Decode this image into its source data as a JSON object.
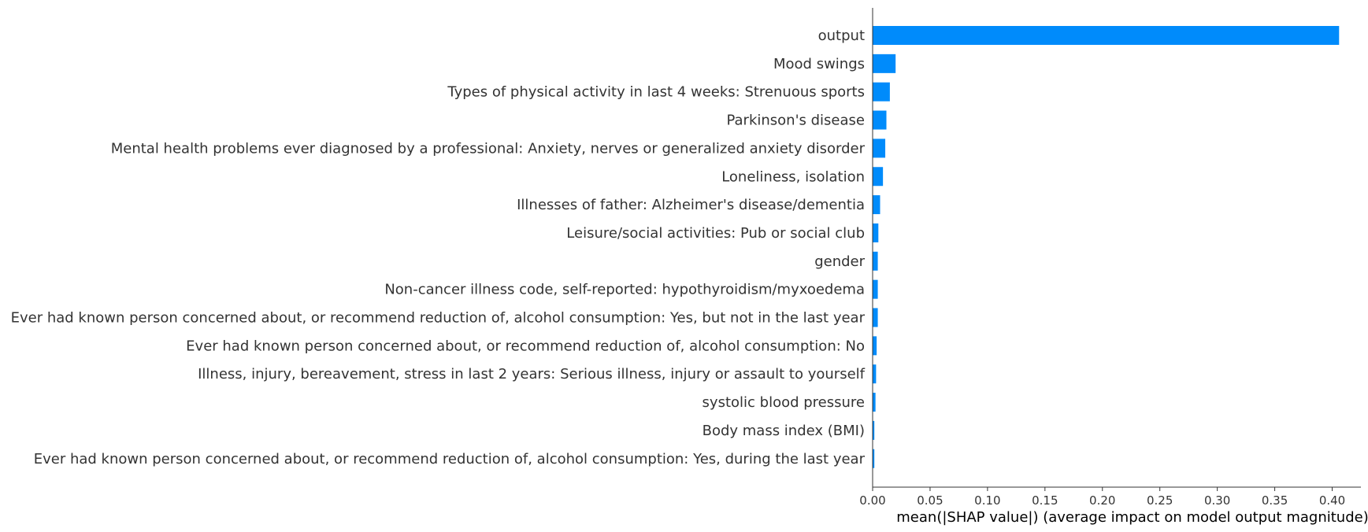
{
  "chart_data": {
    "type": "bar",
    "orientation": "horizontal",
    "categories": [
      "output",
      "Mood swings",
      "Types of physical activity in last 4 weeks: Strenuous sports",
      "Parkinson's disease",
      "Mental health problems ever diagnosed by a professional: Anxiety, nerves or generalized anxiety disorder",
      "Loneliness, isolation",
      "Illnesses of father: Alzheimer's disease/dementia",
      "Leisure/social activities: Pub or social club",
      "gender",
      "Non-cancer illness code, self-reported: hypothyroidism/myxoedema",
      "Ever had known person concerned about, or recommend reduction of, alcohol consumption: Yes, but not in the last year",
      "Ever had known person concerned about, or recommend reduction of, alcohol consumption: No",
      "Illness, injury, bereavement, stress in last 2 years: Serious illness, injury or assault to yourself",
      "systolic blood pressure",
      "Body mass index (BMI)",
      "Ever had known person concerned about, or recommend reduction of, alcohol consumption: Yes, during the last year"
    ],
    "values": [
      0.406,
      0.02,
      0.015,
      0.012,
      0.011,
      0.009,
      0.0065,
      0.005,
      0.0045,
      0.0045,
      0.0045,
      0.0035,
      0.003,
      0.0025,
      0.0015,
      0.0015
    ],
    "xlabel": "mean(|SHAP value|) (average impact on model output magnitude)",
    "ylabel": "",
    "xlim": [
      0,
      0.425
    ],
    "xticks": [
      0.0,
      0.05,
      0.1,
      0.15,
      0.2,
      0.25,
      0.3,
      0.35,
      0.4
    ],
    "xtick_labels": [
      "0.00",
      "0.05",
      "0.10",
      "0.15",
      "0.20",
      "0.25",
      "0.30",
      "0.35",
      "0.40"
    ],
    "bar_color": "#008bfb",
    "grid": false,
    "legend": "none"
  }
}
